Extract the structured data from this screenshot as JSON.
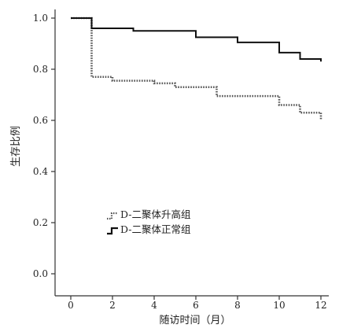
{
  "chart_data": {
    "type": "line",
    "subtype": "kaplan-meier step",
    "xlabel": "随访时间（月）",
    "ylabel": "生存比例",
    "xlim": [
      0,
      12
    ],
    "ylim": [
      0,
      1.0
    ],
    "xticks": [
      "0",
      "2",
      "4",
      "6",
      "8",
      "10",
      "12"
    ],
    "yticks": [
      "0.0",
      "0.2",
      "0.4",
      "0.6",
      "0.8",
      "1.0"
    ],
    "grid": false,
    "legend_position": "lower-left",
    "series": [
      {
        "name": "D-二聚体升高组",
        "style": "dotted",
        "color": "#555555",
        "steps": [
          [
            0,
            1.0
          ],
          [
            1,
            0.77
          ],
          [
            2,
            0.755
          ],
          [
            4,
            0.745
          ],
          [
            5,
            0.73
          ],
          [
            7,
            0.695
          ],
          [
            10,
            0.66
          ],
          [
            11,
            0.63
          ],
          [
            12,
            0.605
          ]
        ]
      },
      {
        "name": "D-二聚体正常组",
        "style": "solid",
        "color": "#111111",
        "steps": [
          [
            0,
            1.0
          ],
          [
            1,
            0.96
          ],
          [
            3,
            0.95
          ],
          [
            6,
            0.925
          ],
          [
            8,
            0.905
          ],
          [
            10,
            0.865
          ],
          [
            11,
            0.84
          ],
          [
            12,
            0.83
          ]
        ]
      }
    ]
  }
}
